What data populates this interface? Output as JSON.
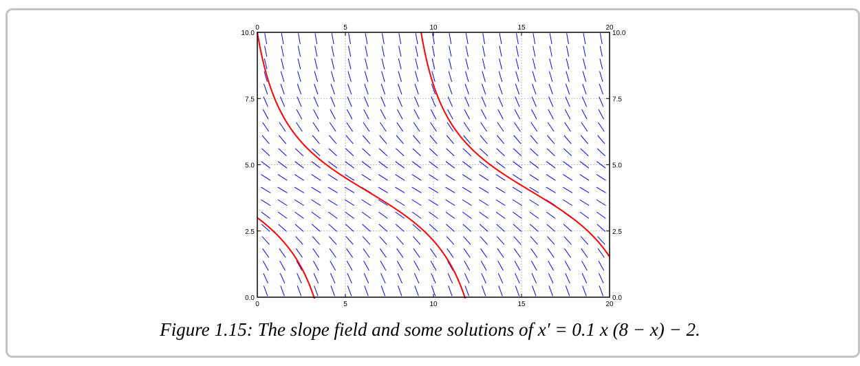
{
  "caption": {
    "label": "Figure 1.15:",
    "text": "The slope field and some solutions of x′ = 0.1 x (8 − x) − 2."
  },
  "colors": {
    "slope_segments": "#0000ff",
    "solution_curves": "#ff0000",
    "grid": "#bbbbbb",
    "axes": "#000000",
    "frame_border": "#c4c4c4"
  },
  "chart_data": {
    "type": "slope_field",
    "equation": "x' = 0.1 x (8 - x) - 2",
    "xlim": [
      0,
      20
    ],
    "ylim": [
      0,
      10
    ],
    "x_ticks": [
      0,
      5,
      10,
      15,
      20
    ],
    "x_tick_labels": [
      "0",
      "5",
      "10",
      "15",
      "20"
    ],
    "y_ticks": [
      0,
      2.5,
      5,
      7.5,
      10
    ],
    "y_tick_labels": [
      "0.0",
      "2.5",
      "5.0",
      "7.5",
      "10.0"
    ],
    "grid": true,
    "field_samples": {
      "nx": 21,
      "ny": 21
    },
    "solution_curves": [
      {
        "t0": 0,
        "x0": 10.0
      },
      {
        "t0": 0,
        "x0": 3.0
      },
      {
        "t0": 9.3,
        "x0": 10.0
      }
    ]
  }
}
